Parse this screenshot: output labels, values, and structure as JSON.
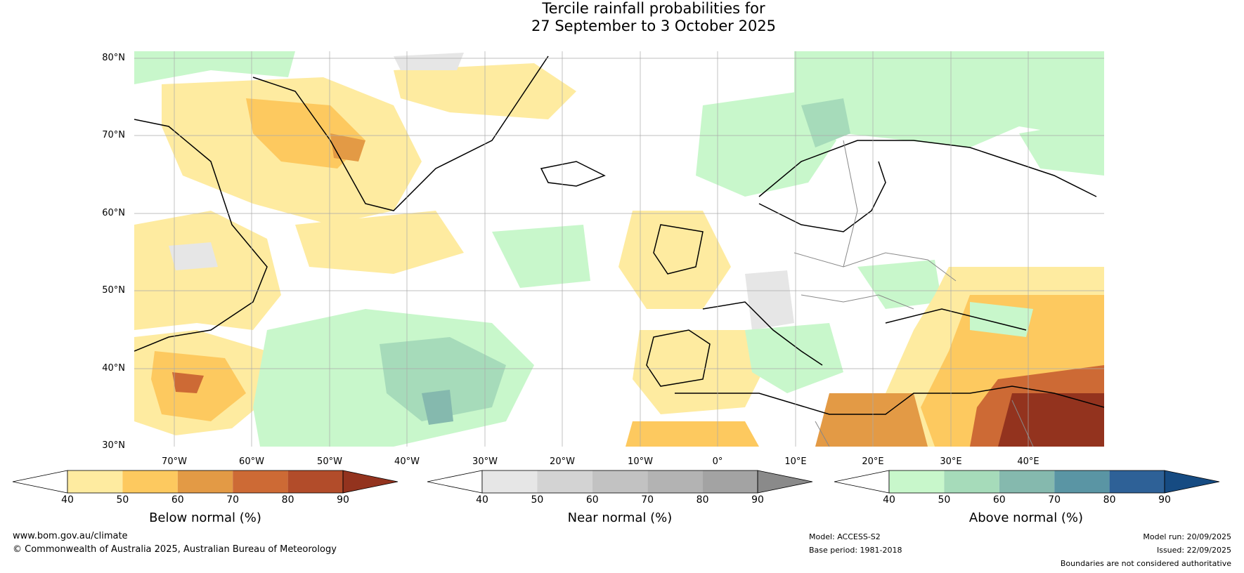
{
  "title_line1": "Tercile rainfall probabilities for",
  "title_line2": "27 September to 3 October 2025",
  "map": {
    "lat_labels": [
      "80°N",
      "70°N",
      "60°N",
      "50°N",
      "40°N",
      "30°N"
    ],
    "lon_labels": [
      "70°W",
      "60°W",
      "50°W",
      "40°W",
      "30°W",
      "20°W",
      "10°W",
      "0°",
      "10°E",
      "20°E",
      "30°E",
      "40°E"
    ]
  },
  "colorbars": [
    {
      "title": "Below normal (%)",
      "ticks": [
        "40",
        "50",
        "60",
        "70",
        "80",
        "90"
      ],
      "colors": [
        "#ffffff",
        "#feeba0",
        "#fdc95f",
        "#e39a45",
        "#cd6a35",
        "#b24c2a",
        "#93331e"
      ]
    },
    {
      "title": "Near normal (%)",
      "ticks": [
        "40",
        "50",
        "60",
        "70",
        "80",
        "90"
      ],
      "colors": [
        "#ffffff",
        "#e6e6e6",
        "#d3d3d3",
        "#c2c2c2",
        "#b3b3b3",
        "#a3a3a3",
        "#8a8a8a"
      ]
    },
    {
      "title": "Above normal (%)",
      "ticks": [
        "40",
        "50",
        "60",
        "70",
        "80",
        "90"
      ],
      "colors": [
        "#ffffff",
        "#c8f7cb",
        "#a6dbba",
        "#85b9ae",
        "#5a95a4",
        "#2e6197",
        "#164b82"
      ]
    }
  ],
  "footer": {
    "website": "www.bom.gov.au/climate",
    "copyright": "© Commonwealth of Australia 2025, Australian Bureau of Meteorology",
    "model": "Model: ACCESS-S2",
    "base_period": "Base period: 1981-2018",
    "model_run": "Model run: 20/09/2025",
    "issued": "Issued: 22/09/2025",
    "disclaimer": "Boundaries are not considered authoritative"
  }
}
